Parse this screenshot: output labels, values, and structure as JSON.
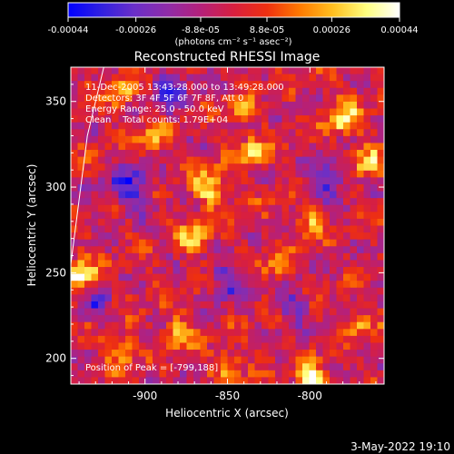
{
  "colorbar": {
    "ticks": [
      "-0.00044",
      "-0.00026",
      "-8.8e-05",
      "8.8e-05",
      "0.00026",
      "0.00044"
    ],
    "tick_values": [
      -0.00044,
      -0.00026,
      -8.8e-05,
      8.8e-05,
      0.00026,
      0.00044
    ],
    "range": [
      -0.00044,
      0.00044
    ],
    "units_label": "(photons cm⁻² s⁻¹ asec⁻²)",
    "colors": [
      "#0000ff",
      "#3020e0",
      "#6a2fc8",
      "#8f2ca8",
      "#b5207a",
      "#d81f3f",
      "#ee3010",
      "#ff7a00",
      "#ffc020",
      "#ffff80",
      "#ffffff"
    ]
  },
  "chart_data": {
    "type": "heatmap",
    "title": "Reconstructed RHESSI Image",
    "xlabel": "Heliocentric X (arcsec)",
    "ylabel": "Heliocentric Y (arcsec)",
    "xlim": [
      -945,
      -755
    ],
    "ylim": [
      185,
      370
    ],
    "xticks": [
      -900,
      -850,
      -800
    ],
    "yticks": [
      200,
      250,
      300,
      350
    ],
    "value_range": [
      -0.00044,
      0.00044
    ],
    "annotations": [
      "11-Dec-2005 13:43:28.000 to 13:49:28.000",
      "Detectors: 3F 4F 5F 6F 7F 8F, Att 0",
      "Energy Range: 25.0 - 50.0 keV",
      "Clean    Total counts: 1.79E+04",
      "Position of Peak = [-799,188]"
    ],
    "peak": [
      -799,
      188
    ],
    "limb_line": [
      [
        -945,
        255
      ],
      [
        -935,
        330
      ],
      [
        -925,
        370
      ]
    ],
    "bright_sources": [
      {
        "x": -940,
        "y": 248,
        "amp": 0.0004,
        "sigma": 7
      },
      {
        "x": -860,
        "y": 300,
        "amp": 0.00036,
        "sigma": 7
      },
      {
        "x": -835,
        "y": 320,
        "amp": 0.00034,
        "sigma": 6
      },
      {
        "x": -870,
        "y": 270,
        "amp": 0.0003,
        "sigma": 6
      },
      {
        "x": -895,
        "y": 330,
        "amp": 0.00028,
        "sigma": 6
      },
      {
        "x": -915,
        "y": 355,
        "amp": 0.00026,
        "sigma": 6
      },
      {
        "x": -780,
        "y": 340,
        "amp": 0.00034,
        "sigma": 7
      },
      {
        "x": -765,
        "y": 315,
        "amp": 0.0003,
        "sigma": 6
      },
      {
        "x": -800,
        "y": 280,
        "amp": 0.00026,
        "sigma": 6
      },
      {
        "x": -820,
        "y": 255,
        "amp": 0.00028,
        "sigma": 5
      },
      {
        "x": -880,
        "y": 215,
        "amp": 0.0003,
        "sigma": 6
      },
      {
        "x": -915,
        "y": 205,
        "amp": 0.00028,
        "sigma": 6
      },
      {
        "x": -850,
        "y": 195,
        "amp": 0.00026,
        "sigma": 6
      },
      {
        "x": -799,
        "y": 188,
        "amp": 0.00044,
        "sigma": 6
      },
      {
        "x": -770,
        "y": 220,
        "amp": 0.00024,
        "sigma": 5
      },
      {
        "x": -840,
        "y": 345,
        "amp": 0.00022,
        "sigma": 5
      }
    ],
    "dark_sources": [
      {
        "x": -910,
        "y": 300,
        "amp": -0.0003,
        "sigma": 9
      },
      {
        "x": -885,
        "y": 355,
        "amp": -0.00028,
        "sigma": 8
      },
      {
        "x": -850,
        "y": 245,
        "amp": -0.00026,
        "sigma": 8
      },
      {
        "x": -790,
        "y": 305,
        "amp": -0.00028,
        "sigma": 8
      },
      {
        "x": -810,
        "y": 230,
        "amp": -0.00024,
        "sigma": 7
      },
      {
        "x": -930,
        "y": 230,
        "amp": -0.00022,
        "sigma": 7
      }
    ]
  },
  "footer": {
    "timestamp": "3-May-2022 19:10"
  }
}
